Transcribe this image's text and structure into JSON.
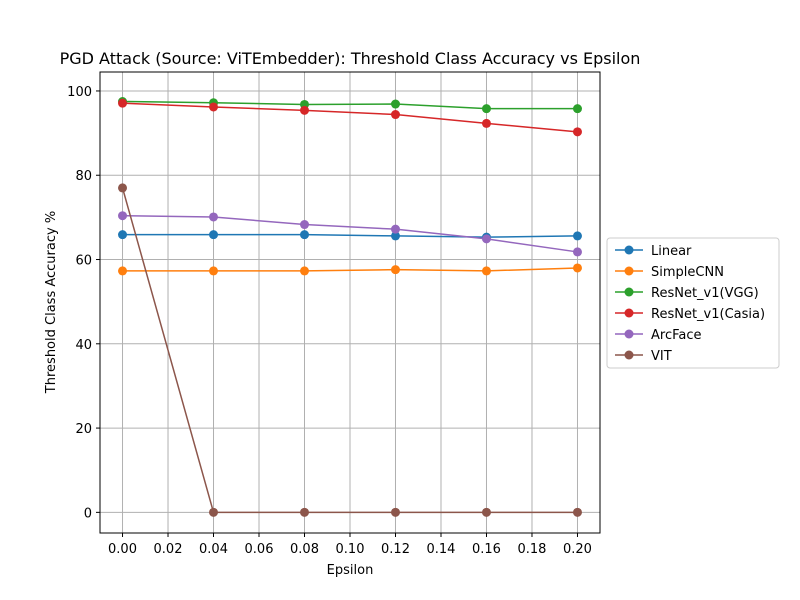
{
  "chart_data": {
    "type": "line",
    "title": "PGD Attack (Source: ViTEmbedder): Threshold Class Accuracy vs Epsilon",
    "xlabel": "Epsilon",
    "ylabel": "Threshold Class Accuracy %",
    "x": [
      0.0,
      0.04,
      0.08,
      0.12,
      0.16,
      0.2
    ],
    "xlim": [
      -0.0099,
      0.2099
    ],
    "ylim": [
      -4.9,
      104.5
    ],
    "xticks": [
      0.0,
      0.02,
      0.04,
      0.06,
      0.08,
      0.1,
      0.12,
      0.14,
      0.16,
      0.18,
      0.2
    ],
    "xtick_labels": [
      "0.00",
      "0.02",
      "0.04",
      "0.06",
      "0.08",
      "0.10",
      "0.12",
      "0.14",
      "0.16",
      "0.18",
      "0.20"
    ],
    "yticks": [
      0,
      20,
      40,
      60,
      80,
      100
    ],
    "ytick_labels": [
      "0",
      "20",
      "40",
      "60",
      "80",
      "100"
    ],
    "grid": true,
    "legend_position": "outside-right",
    "series": [
      {
        "name": "Linear",
        "color": "#1f77b4",
        "values": [
          65.9,
          65.9,
          65.9,
          65.6,
          65.3,
          65.6
        ]
      },
      {
        "name": "SimpleCNN",
        "color": "#ff7f0e",
        "values": [
          57.3,
          57.3,
          57.3,
          57.6,
          57.3,
          58.0
        ]
      },
      {
        "name": "ResNet_v1(VGG)",
        "color": "#2ca02c",
        "values": [
          97.5,
          97.2,
          96.8,
          96.9,
          95.8,
          95.8
        ]
      },
      {
        "name": "ResNet_v1(Casia)",
        "color": "#d62728",
        "values": [
          97.1,
          96.2,
          95.4,
          94.4,
          92.3,
          90.3
        ]
      },
      {
        "name": "ArcFace",
        "color": "#9467bd",
        "values": [
          70.4,
          70.1,
          68.3,
          67.2,
          64.9,
          61.8
        ]
      },
      {
        "name": "VIT",
        "color": "#8c564b",
        "values": [
          77.0,
          0.0,
          0.0,
          0.0,
          0.0,
          0.0
        ]
      }
    ]
  }
}
